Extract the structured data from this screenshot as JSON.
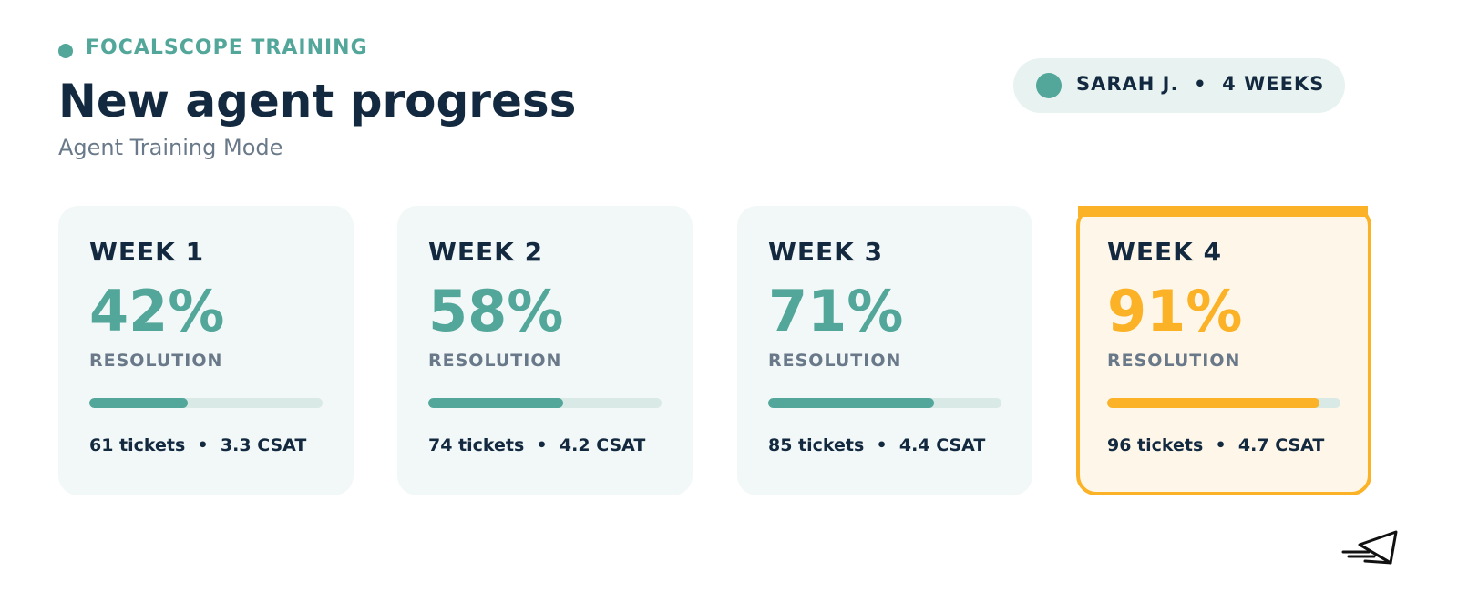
{
  "brand": {
    "name": "FOCALSCOPE TRAINING"
  },
  "page": {
    "title": "New agent progress",
    "subtitle": "Agent Training Mode"
  },
  "agent_badge": {
    "text": "SARAH J.  •  4 WEEKS"
  },
  "colors": {
    "accent": "#52a79a",
    "highlight": "#fbb226",
    "text_dark": "#13293f",
    "text_muted": "#697989"
  },
  "weeks": [
    {
      "label": "WEEK 1",
      "value": "42%",
      "progress": 0.42,
      "metric": "RESOLUTION",
      "stats": "61 tickets  •  3.3 CSAT"
    },
    {
      "label": "WEEK 2",
      "value": "58%",
      "progress": 0.58,
      "metric": "RESOLUTION",
      "stats": "74 tickets  •  4.2 CSAT"
    },
    {
      "label": "WEEK 3",
      "value": "71%",
      "progress": 0.71,
      "metric": "RESOLUTION",
      "stats": "85 tickets  •  4.4 CSAT"
    },
    {
      "label": "WEEK 4",
      "value": "91%",
      "progress": 0.91,
      "metric": "RESOLUTION",
      "stats": "96 tickets  •  4.7 CSAT"
    }
  ],
  "icons": {
    "brand_dot": "status-dot-icon",
    "agent_avatar": "avatar-dot-icon",
    "logo": "paper-plane-icon"
  }
}
